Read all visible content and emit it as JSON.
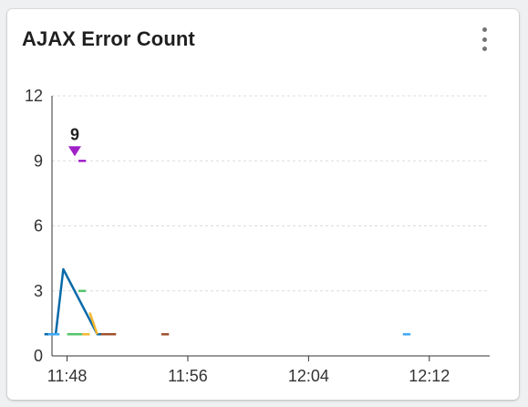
{
  "card": {
    "title": "AJAX Error Count",
    "menu_icon": "more-vert-icon"
  },
  "chart_data": {
    "type": "line",
    "title": "AJAX Error Count",
    "xlabel": "",
    "ylabel": "",
    "x_ticks": [
      "11:48",
      "11:56",
      "12:04",
      "12:12"
    ],
    "y_ticks": [
      0,
      3,
      6,
      9,
      12
    ],
    "ylim": [
      0,
      12
    ],
    "xlim": [
      "11:47",
      "12:16"
    ],
    "grid": true,
    "legend": "none",
    "peak_label": {
      "x": "11:48:45",
      "y": 9,
      "text": "9",
      "color": "#a020c8"
    },
    "series": [
      {
        "color": "#0a6aa8",
        "points": [
          [
            "11:46:30",
            1
          ],
          [
            "11:47:15",
            1
          ],
          [
            "11:47:45",
            4
          ],
          [
            "11:50:00",
            1
          ],
          [
            "11:51:00",
            1
          ]
        ]
      },
      {
        "color": "#3fa9f5",
        "points": [
          [
            "11:46:45",
            1
          ],
          [
            "11:47:30",
            1
          ]
        ]
      },
      {
        "color": "#f5b82e",
        "points": [
          [
            "11:49:30",
            2
          ],
          [
            "11:50:00",
            1
          ]
        ]
      },
      {
        "color": "#f5b82e",
        "points": [
          [
            "11:49:00",
            1
          ],
          [
            "11:49:30",
            1
          ]
        ]
      },
      {
        "color": "#56c46b",
        "points": [
          [
            "11:48:00",
            1
          ],
          [
            "11:49:00",
            1
          ]
        ]
      },
      {
        "color": "#56c46b",
        "points": [
          [
            "11:48:45",
            3
          ],
          [
            "11:49:15",
            3
          ]
        ]
      },
      {
        "color": "#a020c8",
        "points": [
          [
            "11:48:45",
            9
          ],
          [
            "11:49:15",
            9
          ]
        ]
      },
      {
        "color": "#a0522d",
        "points": [
          [
            "11:50:15",
            1
          ],
          [
            "11:51:15",
            1
          ]
        ]
      },
      {
        "color": "#a0522d",
        "points": [
          [
            "11:54:15",
            1
          ],
          [
            "11:54:45",
            1
          ]
        ]
      },
      {
        "color": "#3fa9f5",
        "points": [
          [
            "12:10:15",
            1
          ],
          [
            "12:10:45",
            1
          ]
        ]
      }
    ]
  }
}
